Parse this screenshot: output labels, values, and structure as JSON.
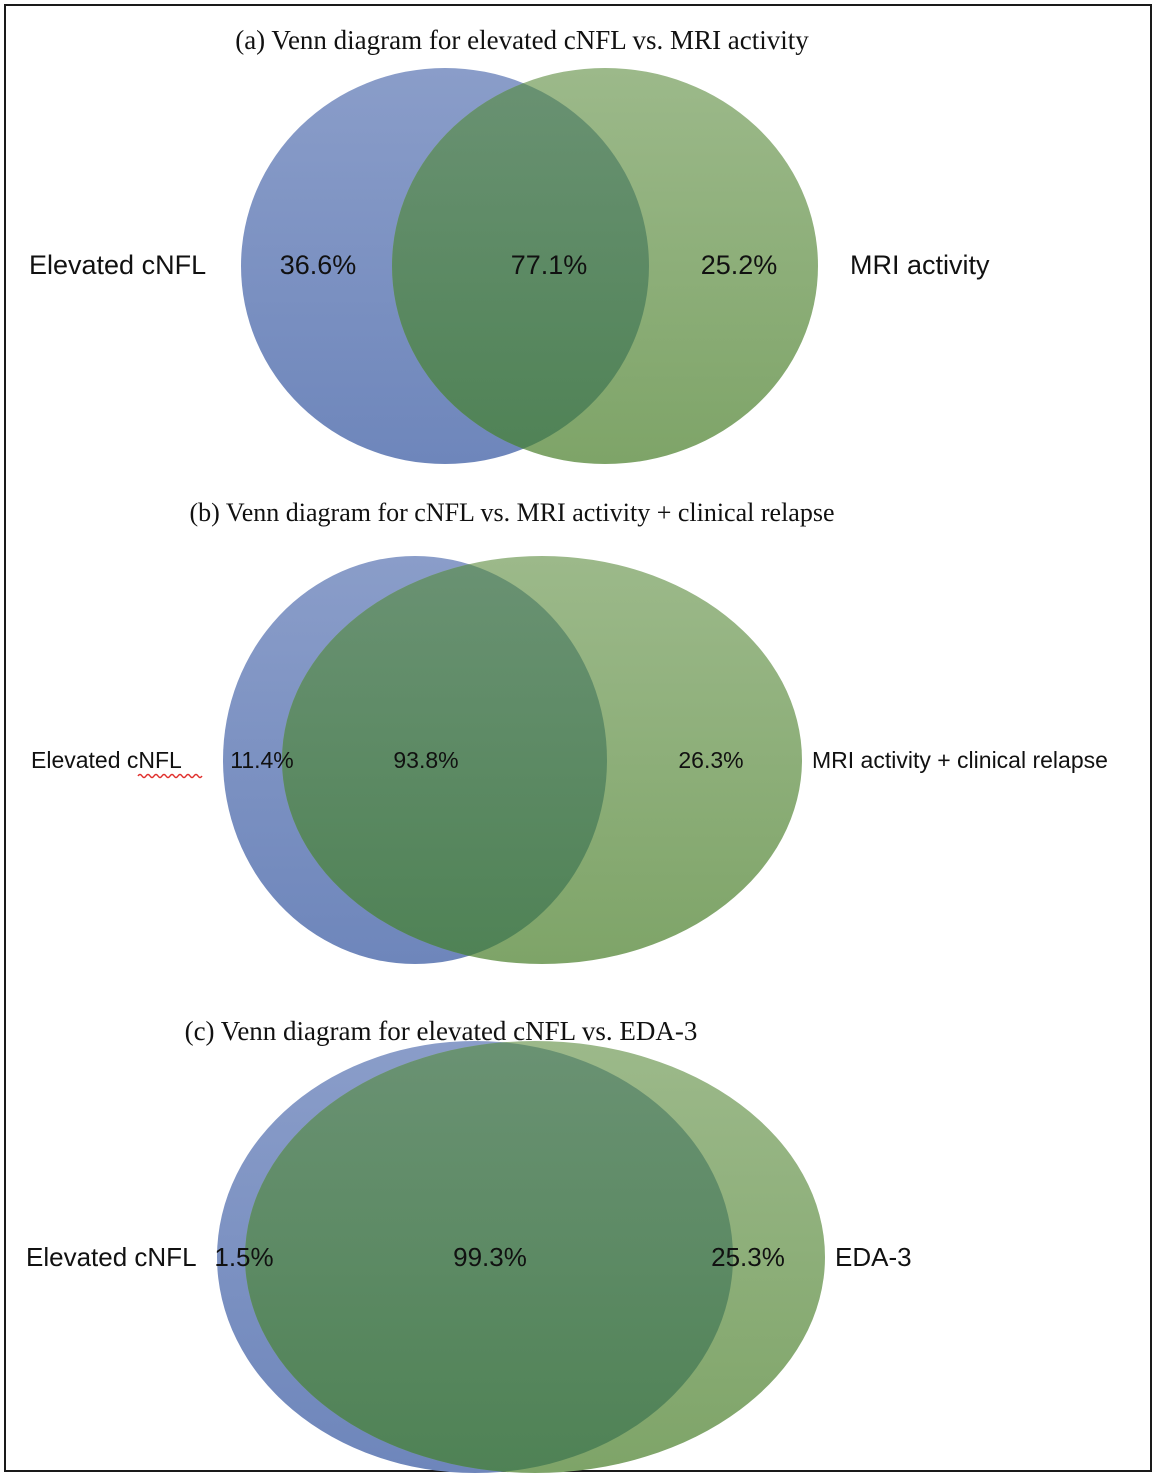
{
  "colors": {
    "set_a": "#6f86bd",
    "set_b": "#86ad72",
    "overlap": "#5c8a5f"
  },
  "panels": [
    {
      "title": "(a) Venn diagram for elevated cNFL vs. MRI activity",
      "left_label": "Elevated cNFL",
      "right_label": "MRI activity",
      "left_only": "36.6%",
      "overlap": "77.1%",
      "right_only": "25.2%"
    },
    {
      "title": "(b) Venn diagram for cNFL vs. MRI activity + clinical relapse",
      "left_label": "Elevated cNFL",
      "right_label": "MRI activity + clinical relapse",
      "left_only": "11.4%",
      "overlap": "93.8%",
      "right_only": "26.3%"
    },
    {
      "title": "(c) Venn diagram for elevated cNFL vs. EDA-3",
      "left_label": "Elevated cNFL",
      "right_label": "EDA-3",
      "left_only": "1.5%",
      "overlap": "99.3%",
      "right_only": "25.3%"
    }
  ]
}
